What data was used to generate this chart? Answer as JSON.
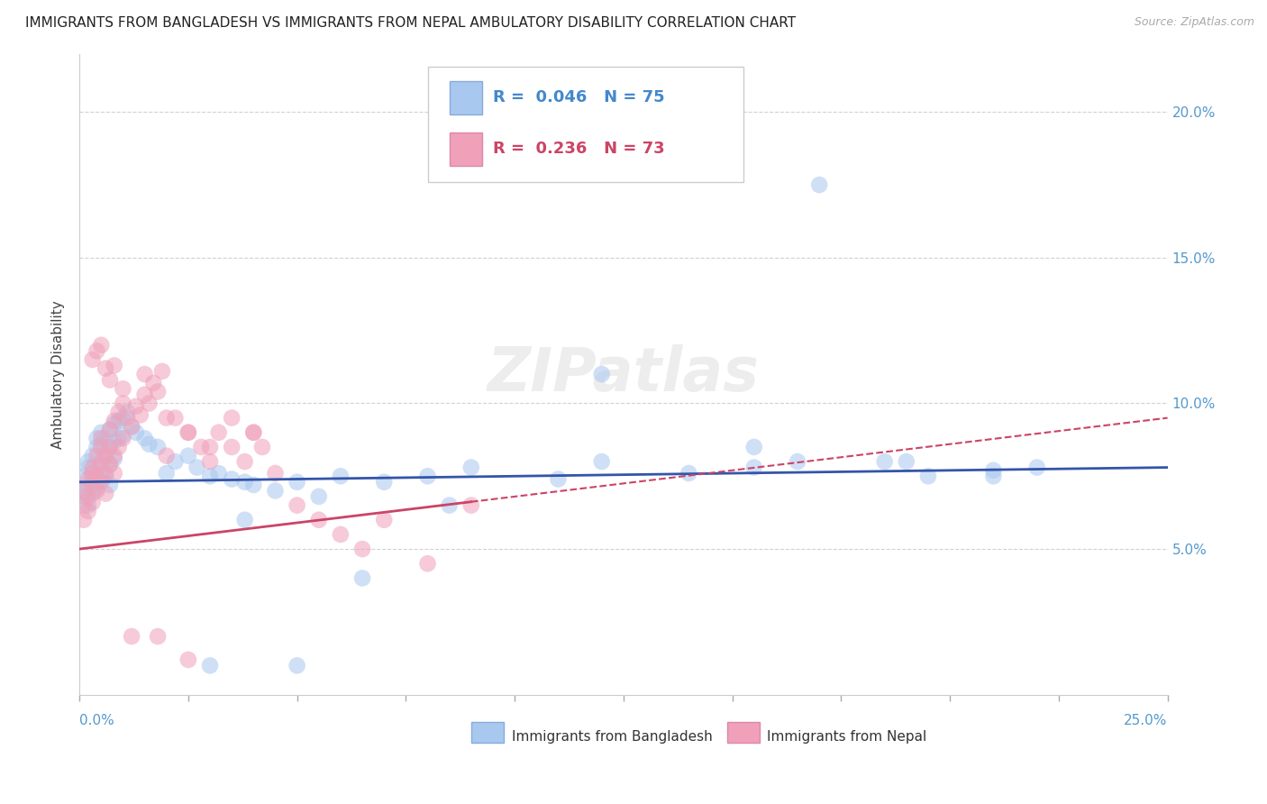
{
  "title": "IMMIGRANTS FROM BANGLADESH VS IMMIGRANTS FROM NEPAL AMBULATORY DISABILITY CORRELATION CHART",
  "source": "Source: ZipAtlas.com",
  "ylabel": "Ambulatory Disability",
  "xlim": [
    0.0,
    0.25
  ],
  "ylim": [
    0.0,
    0.22
  ],
  "color_bangladesh": "#a8c8f0",
  "color_nepal": "#f0a0b8",
  "color_bangladesh_line": "#3355aa",
  "color_nepal_line": "#cc4466",
  "background_color": "#ffffff",
  "grid_color": "#cccccc",
  "title_fontsize": 11,
  "axis_label_fontsize": 11,
  "tick_fontsize": 11,
  "legend_fontsize": 13,
  "bd_intercept": 0.073,
  "bd_slope": 0.02,
  "np_intercept": 0.05,
  "np_slope": 0.18,
  "bd_x": [
    0.001,
    0.001,
    0.001,
    0.002,
    0.002,
    0.002,
    0.002,
    0.003,
    0.003,
    0.003,
    0.003,
    0.004,
    0.004,
    0.004,
    0.004,
    0.004,
    0.005,
    0.005,
    0.005,
    0.005,
    0.006,
    0.006,
    0.006,
    0.007,
    0.007,
    0.007,
    0.007,
    0.008,
    0.008,
    0.008,
    0.009,
    0.009,
    0.01,
    0.01,
    0.011,
    0.012,
    0.013,
    0.015,
    0.016,
    0.018,
    0.02,
    0.022,
    0.025,
    0.027,
    0.03,
    0.032,
    0.035,
    0.038,
    0.04,
    0.045,
    0.05,
    0.055,
    0.06,
    0.07,
    0.08,
    0.09,
    0.11,
    0.12,
    0.14,
    0.155,
    0.17,
    0.185,
    0.195,
    0.21,
    0.22,
    0.03,
    0.05,
    0.065,
    0.038,
    0.12,
    0.085,
    0.155,
    0.19,
    0.165,
    0.21
  ],
  "bd_y": [
    0.075,
    0.07,
    0.068,
    0.078,
    0.072,
    0.065,
    0.08,
    0.082,
    0.076,
    0.069,
    0.074,
    0.085,
    0.079,
    0.073,
    0.088,
    0.071,
    0.086,
    0.08,
    0.074,
    0.09,
    0.088,
    0.082,
    0.075,
    0.091,
    0.085,
    0.079,
    0.072,
    0.093,
    0.087,
    0.081,
    0.094,
    0.088,
    0.095,
    0.089,
    0.097,
    0.092,
    0.09,
    0.088,
    0.086,
    0.085,
    0.076,
    0.08,
    0.082,
    0.078,
    0.075,
    0.076,
    0.074,
    0.073,
    0.072,
    0.07,
    0.073,
    0.068,
    0.075,
    0.073,
    0.075,
    0.078,
    0.074,
    0.08,
    0.076,
    0.078,
    0.175,
    0.08,
    0.075,
    0.077,
    0.078,
    0.01,
    0.01,
    0.04,
    0.06,
    0.11,
    0.065,
    0.085,
    0.08,
    0.08,
    0.075
  ],
  "np_x": [
    0.001,
    0.001,
    0.001,
    0.002,
    0.002,
    0.002,
    0.003,
    0.003,
    0.003,
    0.003,
    0.004,
    0.004,
    0.004,
    0.005,
    0.005,
    0.005,
    0.005,
    0.006,
    0.006,
    0.006,
    0.007,
    0.007,
    0.007,
    0.008,
    0.008,
    0.008,
    0.009,
    0.009,
    0.01,
    0.01,
    0.011,
    0.012,
    0.013,
    0.014,
    0.015,
    0.016,
    0.017,
    0.018,
    0.019,
    0.02,
    0.022,
    0.025,
    0.028,
    0.03,
    0.032,
    0.035,
    0.038,
    0.04,
    0.042,
    0.045,
    0.05,
    0.055,
    0.06,
    0.065,
    0.07,
    0.08,
    0.09,
    0.003,
    0.004,
    0.005,
    0.006,
    0.007,
    0.008,
    0.01,
    0.015,
    0.02,
    0.025,
    0.03,
    0.035,
    0.04,
    0.012,
    0.018,
    0.025
  ],
  "np_y": [
    0.065,
    0.07,
    0.06,
    0.074,
    0.068,
    0.063,
    0.078,
    0.072,
    0.066,
    0.076,
    0.082,
    0.07,
    0.075,
    0.085,
    0.079,
    0.073,
    0.088,
    0.082,
    0.076,
    0.069,
    0.091,
    0.085,
    0.079,
    0.094,
    0.082,
    0.076,
    0.097,
    0.085,
    0.1,
    0.088,
    0.095,
    0.092,
    0.099,
    0.096,
    0.103,
    0.1,
    0.107,
    0.104,
    0.111,
    0.082,
    0.095,
    0.09,
    0.085,
    0.08,
    0.09,
    0.095,
    0.08,
    0.09,
    0.085,
    0.076,
    0.065,
    0.06,
    0.055,
    0.05,
    0.06,
    0.045,
    0.065,
    0.115,
    0.118,
    0.12,
    0.112,
    0.108,
    0.113,
    0.105,
    0.11,
    0.095,
    0.09,
    0.085,
    0.085,
    0.09,
    0.02,
    0.02,
    0.012
  ]
}
